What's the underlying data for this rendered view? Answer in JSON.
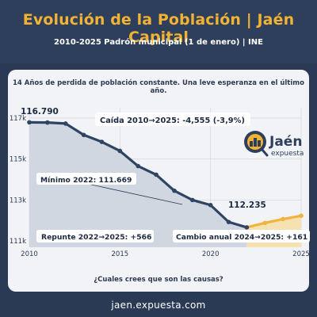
{
  "header": {
    "title": "Evolución de la Población | Jaén Capital",
    "subtitle": "2010-2025  Padrón municipal (1 de enero) | INE"
  },
  "headline": "14 Años de perdida de población constante. Una leve esperanza en el último año.",
  "question": "¿Cuales crees que son las causas?",
  "footer": "jaen.expuesta.com",
  "logo": {
    "name": "Jaén",
    "tagline": "expuesta"
  },
  "annotations": {
    "start_value": "116.790",
    "drop": "Caída 2010→2025: -4,555 (-3,9%)",
    "min": "Mínimo 2022: 111.669",
    "value_2022_label": "112.235",
    "rebound": "Repunte 2022→2025: +566",
    "annual_change": "Cambio anual 2024→2025: +161"
  },
  "colors": {
    "header_bg": "#2e3f5c",
    "title": "#f2b233",
    "decline_line": "#2f4463",
    "decline_fill": "#cdd4df",
    "rebound_line": "#f0b43c",
    "rebound_fill": "#f6e0a8"
  },
  "chart_data": {
    "type": "line",
    "x": [
      2010,
      2011,
      2012,
      2013,
      2014,
      2015,
      2016,
      2017,
      2018,
      2019,
      2020,
      2021,
      2022,
      2023,
      2024,
      2025
    ],
    "series": [
      {
        "values": [
          116790,
          116781,
          116731,
          116176,
          115837,
          115395,
          114658,
          114238,
          113457,
          113004,
          112757,
          111932,
          111669,
          111888,
          112074,
          112235
        ]
      }
    ],
    "decline_period": [
      2010,
      2022
    ],
    "rebound_period": [
      2022,
      2025
    ],
    "xticks": [
      2010,
      2015,
      2020,
      2025
    ],
    "yticks": [
      111000,
      113000,
      115000,
      117000
    ],
    "ytick_labels": [
      "111k",
      "113k",
      "115k",
      "117k"
    ],
    "xlim": [
      2010,
      2025
    ],
    "ylim": [
      110700,
      117500
    ],
    "grid": true
  }
}
